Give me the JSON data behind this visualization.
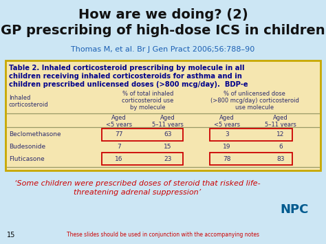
{
  "title_line1": "How are we doing? (2)",
  "title_line2": "GP prescribing of high-dose ICS in children",
  "subtitle": "Thomas M, et al. Br J Gen Pract 2006;56:788–90",
  "table_title_main": "Table 2. Inhaled corticosteroid prescribing by molecule in all children receiving inhaled corticosteroids for asthma and in children prescribed unlicensed doses (>800 mcg/day).",
  "table_title_suffix": "BDP-e",
  "col_header1": [
    "% of total inhaled",
    "corticosteroid use",
    "by molecule"
  ],
  "col_header2": [
    "% of unlicensed dose",
    "(>800 mcg/day) corticosteroid",
    "use molecule"
  ],
  "row_header_line1": "Inhaled",
  "row_header_line2": "corticosteroid",
  "age_headers": [
    "Aged\n<5 years",
    "Aged\n5–11 years",
    "Aged\n<5 years",
    "Aged\n5–11 years"
  ],
  "drugs": [
    "Beclomethasone",
    "Budesonide",
    "Fluticasone"
  ],
  "values": [
    [
      77,
      63,
      3,
      12
    ],
    [
      7,
      15,
      19,
      6
    ],
    [
      16,
      23,
      78,
      83
    ]
  ],
  "highlighted_rows": [
    0,
    2
  ],
  "footer_italic_line1": "‘Some children were prescribed doses of steroid that risked life-",
  "footer_italic_line2": "threatening adrenal suppression’",
  "footer_note": "These slides should be used in conjunction with the accompanying notes",
  "slide_number": "15",
  "bg_color": "#cce6f4",
  "table_bg_color": "#f5e6b0",
  "table_border_color": "#c8a800",
  "title_color": "#111111",
  "subtitle_color": "#1a5fb4",
  "table_title_color": "#00008b",
  "data_text_color": "#2c2c6e",
  "highlight_box_color": "#cc0000",
  "footer_italic_color": "#cc0000",
  "footer_note_color": "#cc0000",
  "slide_num_color": "#000000",
  "npc_color": "#005a8e",
  "divider_color": "#999966"
}
